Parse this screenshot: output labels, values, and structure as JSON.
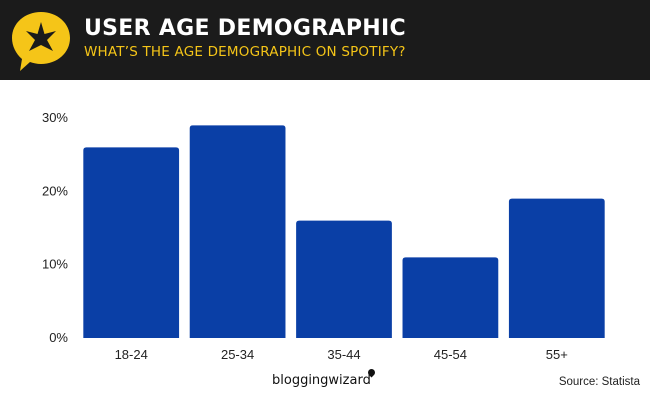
{
  "header": {
    "title": "USER AGE DEMOGRAPHIC",
    "subtitle": "WHAT’S THE AGE DEMOGRAPHIC ON SPOTIFY?"
  },
  "colors": {
    "header_bg": "#1b1b1b",
    "accent": "#f5c518",
    "bar": "#0a3fa6"
  },
  "icons": {
    "logo": "star-badge-icon"
  },
  "brand": {
    "name": "bloggingwizard"
  },
  "source": "Source: Statista",
  "chart_data": {
    "type": "bar",
    "categories": [
      "18-24",
      "25-34",
      "35-44",
      "45-54",
      "55+"
    ],
    "values": [
      26,
      29,
      16,
      11,
      19
    ],
    "ytick_labels": [
      "0%",
      "10%",
      "20%",
      "30%"
    ],
    "yticks": [
      0,
      10,
      20,
      30
    ],
    "ylim": [
      0,
      30
    ],
    "grid": false,
    "legend": "none",
    "title": "",
    "xlabel": "",
    "ylabel": ""
  }
}
